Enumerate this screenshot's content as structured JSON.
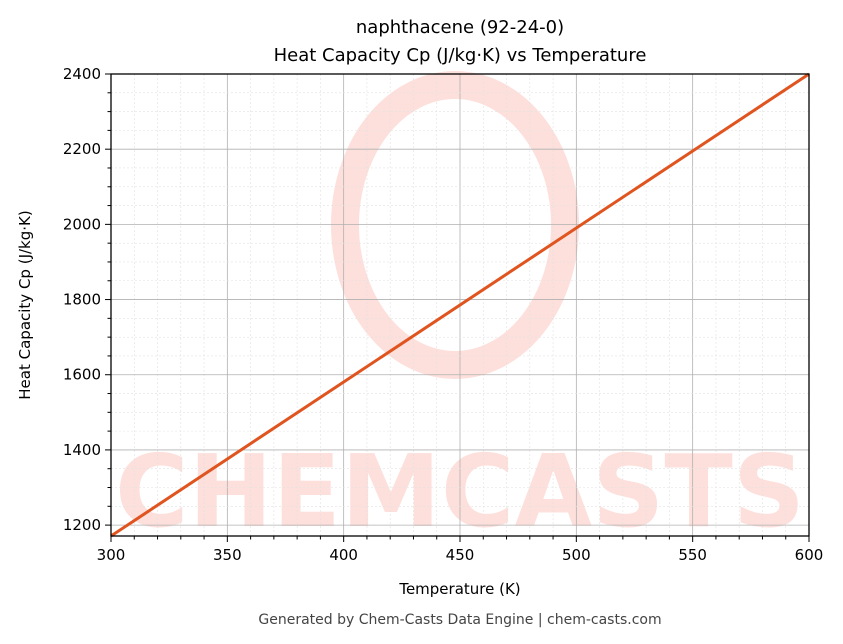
{
  "chart_data": {
    "type": "line",
    "title": "naphthacene (92-24-0)",
    "subtitle": "Heat Capacity Cp (J/kg·K) vs Temperature",
    "xlabel": "Temperature (K)",
    "ylabel": "Heat Capacity Cp (J/kg·K)",
    "xlim": [
      300,
      600
    ],
    "ylim": [
      1171,
      2400
    ],
    "xticks": [
      300,
      350,
      400,
      450,
      500,
      550,
      600
    ],
    "yticks": [
      1200,
      1400,
      1600,
      1800,
      2000,
      2200,
      2400
    ],
    "grid": true,
    "series": [
      {
        "x": [
          300,
          600
        ],
        "y": [
          1171,
          2400
        ],
        "color": "#e0541f"
      }
    ],
    "footer": "Generated by Chem-Casts Data Engine | chem-casts.com",
    "watermark": "CHEMCASTS"
  }
}
